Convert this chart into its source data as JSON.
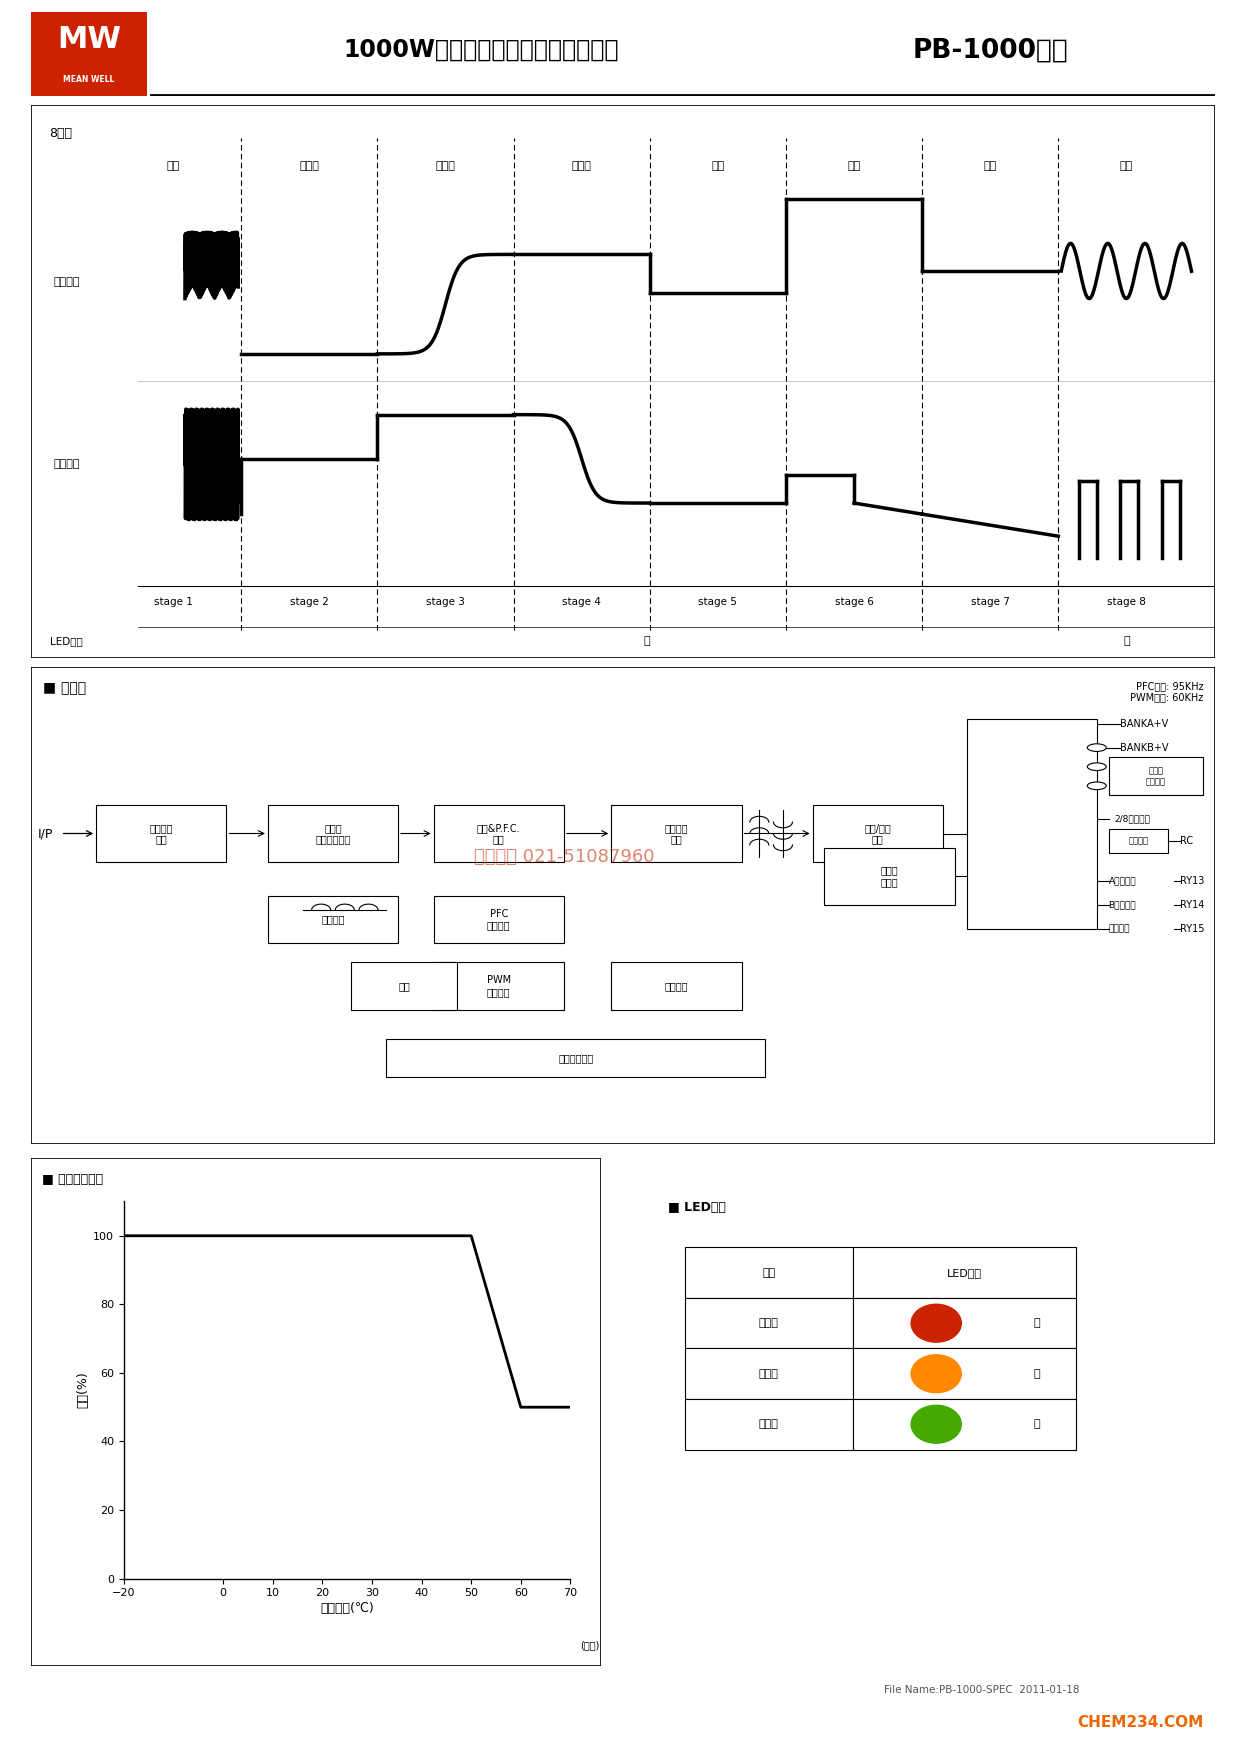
{
  "title_cn": "1000W智能型单组输出蓄电池充电器",
  "title_model": "PB-1000系列",
  "header_bg": "#cc2200",
  "page_bg": "#ffffff",
  "stages": [
    "脉冲",
    "软启动",
    "定电流",
    "定电压",
    "分析",
    "修复",
    "浮充",
    "脉冲"
  ],
  "stage_labels": [
    "stage 1",
    "stage 2",
    "stage 3",
    "stage 4",
    "stage 5",
    "stage 6",
    "stage 7",
    "stage 8"
  ],
  "block_diagram_title": "■ 方框图",
  "derating_title": "■ 负载减额曲线",
  "led_func_title": "■ LED功能",
  "pfc_text": "PFC频率: 95KHz\nPWM频率: 60KHz",
  "ip_label": "I/P",
  "derating_xticks": [
    -20,
    0,
    10,
    20,
    30,
    40,
    50,
    60,
    70
  ],
  "derating_yticks": [
    0,
    20,
    40,
    60,
    80,
    100
  ],
  "derating_curve_x": [
    -20,
    50,
    60,
    70
  ],
  "derating_curve_y": [
    100,
    100,
    50,
    50
  ],
  "led_states": [
    "无充电",
    "充电中",
    "充满电"
  ],
  "led_color_names": [
    "红",
    "橙",
    "绿"
  ],
  "led_colors": [
    "#cc2200",
    "#ff8800",
    "#44aa00"
  ],
  "watermark": "上海兢纬 021-51087960",
  "footer_left": "File Name:PB-1000-SPEC  2011-01-18",
  "footer_right": "CHEM234.COM",
  "footer_right_color": "#ee6600"
}
